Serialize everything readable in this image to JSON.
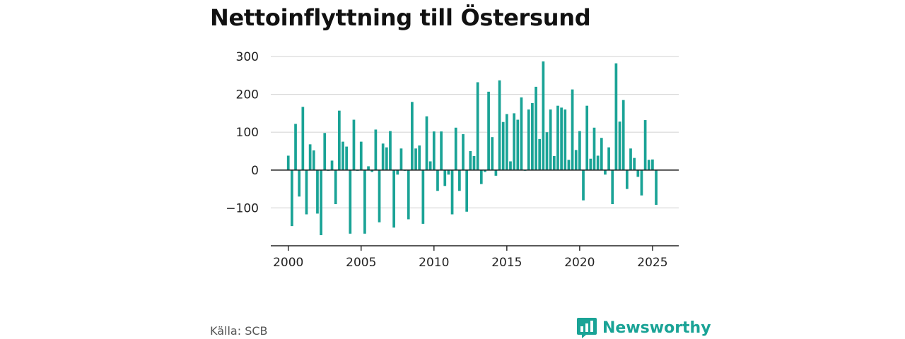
{
  "title": "Nettoinflyttning till Östersund",
  "source": "Källa: SCB",
  "brand": {
    "name": "Newsworthy",
    "icon": "bar-chart-speech-bubble-icon"
  },
  "colors": {
    "bars": "#1aa396",
    "axis": "#222222",
    "grid": "#d9d9d9",
    "brand": "#1aa396"
  },
  "chart_data": {
    "type": "bar",
    "title": "Nettoinflyttning till Östersund",
    "xlabel": "",
    "ylabel": "",
    "x_ticks": [
      2000,
      2005,
      2010,
      2015,
      2020,
      2025
    ],
    "y_ticks": [
      -100,
      0,
      100,
      200,
      300
    ],
    "ylim": [
      -200,
      300
    ],
    "xlim": [
      1998.8,
      2026.8
    ],
    "grid": "horizontal",
    "x": [
      2000.0,
      2000.25,
      2000.5,
      2000.75,
      2001.0,
      2001.25,
      2001.5,
      2001.75,
      2002.0,
      2002.25,
      2002.5,
      2002.75,
      2003.0,
      2003.25,
      2003.5,
      2003.75,
      2004.0,
      2004.25,
      2004.5,
      2004.75,
      2005.0,
      2005.25,
      2005.5,
      2005.75,
      2006.0,
      2006.25,
      2006.5,
      2006.75,
      2007.0,
      2007.25,
      2007.5,
      2007.75,
      2008.0,
      2008.25,
      2008.5,
      2008.75,
      2009.0,
      2009.25,
      2009.5,
      2009.75,
      2010.0,
      2010.25,
      2010.5,
      2010.75,
      2011.0,
      2011.25,
      2011.5,
      2011.75,
      2012.0,
      2012.25,
      2012.5,
      2012.75,
      2013.0,
      2013.25,
      2013.5,
      2013.75,
      2014.0,
      2014.25,
      2014.5,
      2014.75,
      2015.0,
      2015.25,
      2015.5,
      2015.75,
      2016.0,
      2016.25,
      2016.5,
      2016.75,
      2017.0,
      2017.25,
      2017.5,
      2017.75,
      2018.0,
      2018.25,
      2018.5,
      2018.75,
      2019.0,
      2019.25,
      2019.5,
      2019.75,
      2020.0,
      2020.25,
      2020.5,
      2020.75,
      2021.0,
      2021.25,
      2021.5,
      2021.75,
      2022.0,
      2022.25,
      2022.5,
      2022.75,
      2023.0,
      2023.25,
      2023.5,
      2023.75,
      2024.0,
      2024.25,
      2024.5,
      2024.75,
      2025.0,
      2025.25
    ],
    "values": [
      38,
      -148,
      122,
      -70,
      167,
      -117,
      68,
      52,
      -115,
      -172,
      98,
      -2,
      25,
      -90,
      157,
      75,
      62,
      -168,
      133,
      -2,
      75,
      -168,
      10,
      -5,
      107,
      -138,
      70,
      60,
      103,
      -152,
      -12,
      57,
      -2,
      -130,
      180,
      57,
      65,
      -142,
      142,
      23,
      102,
      -55,
      102,
      -42,
      -12,
      -117,
      112,
      -55,
      95,
      -110,
      50,
      37,
      232,
      -37,
      -5,
      207,
      87,
      -15,
      237,
      127,
      148,
      23,
      150,
      133,
      192,
      -2,
      160,
      177,
      220,
      82,
      287,
      100,
      160,
      37,
      170,
      165,
      160,
      27,
      213,
      53,
      103,
      -80,
      170,
      30,
      112,
      38,
      85,
      -12,
      60,
      -90,
      282,
      128,
      185,
      -50,
      57,
      32,
      -18,
      -67,
      132,
      27,
      28,
      -92
    ]
  }
}
